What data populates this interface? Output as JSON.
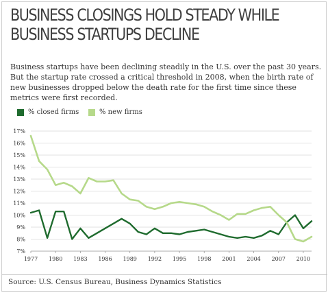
{
  "header": {
    "title_line1": "Business Closings Hold Steady While",
    "title_line2": "Business Startups Decline",
    "description": "Business startups have been declining steadily in the U.S. over the past 30 years. But the startup rate crossed a critical threshold in 2008, when the birth rate of new businesses dropped below the death rate for the first time since these metrics were first recorded."
  },
  "source": "Source: U.S. Census Bureau, Business Dynamics Statistics",
  "chart_data": {
    "type": "line",
    "title": "Business Closings Hold Steady While Business Startups Decline",
    "xlabel": "",
    "ylabel": "",
    "x": [
      1977,
      1978,
      1979,
      1980,
      1981,
      1982,
      1983,
      1984,
      1985,
      1986,
      1987,
      1988,
      1989,
      1990,
      1991,
      1992,
      1993,
      1994,
      1995,
      1996,
      1997,
      1998,
      1999,
      2000,
      2001,
      2002,
      2003,
      2004,
      2005,
      2006,
      2007,
      2008,
      2009,
      2010,
      2011
    ],
    "x_ticks": [
      1977,
      1980,
      1983,
      1986,
      1989,
      1992,
      1995,
      1998,
      2001,
      2004,
      2007,
      2010
    ],
    "x_tick_labels": [
      "1977",
      "1980",
      "1983",
      "1986",
      "1989",
      "1992",
      "1995",
      "1998",
      "2001",
      "2004",
      "2007",
      "2010"
    ],
    "xlim": [
      1977,
      2011
    ],
    "ylim": [
      7,
      17
    ],
    "y_ticks": [
      7,
      8,
      9,
      10,
      11,
      12,
      13,
      14,
      15,
      16,
      17
    ],
    "y_tick_labels": [
      "7%",
      "8%",
      "9%",
      "10%",
      "11%",
      "12%",
      "13%",
      "14%",
      "15%",
      "16%",
      "17%"
    ],
    "grid": "horizontal",
    "legend": "top-left",
    "series": [
      {
        "name": "% closed firms",
        "color": "#1f6b2e",
        "values": [
          10.2,
          10.4,
          8.1,
          10.3,
          10.3,
          8.0,
          8.9,
          8.1,
          8.5,
          8.9,
          9.3,
          9.7,
          9.3,
          8.6,
          8.4,
          8.9,
          8.5,
          8.5,
          8.4,
          8.6,
          8.7,
          8.8,
          8.6,
          8.4,
          8.2,
          8.1,
          8.2,
          8.1,
          8.3,
          8.7,
          8.4,
          9.4,
          10.0,
          8.9,
          9.5
        ]
      },
      {
        "name": "% new firms",
        "color": "#b6d98a",
        "values": [
          16.6,
          14.5,
          13.8,
          12.5,
          12.7,
          12.4,
          11.8,
          13.1,
          12.8,
          12.8,
          12.9,
          11.8,
          11.3,
          11.2,
          10.7,
          10.5,
          10.7,
          11.0,
          11.1,
          11.0,
          10.9,
          10.7,
          10.3,
          10.0,
          9.6,
          10.1,
          10.1,
          10.4,
          10.6,
          10.7,
          10.0,
          9.4,
          8.0,
          7.8,
          8.2
        ]
      }
    ]
  }
}
